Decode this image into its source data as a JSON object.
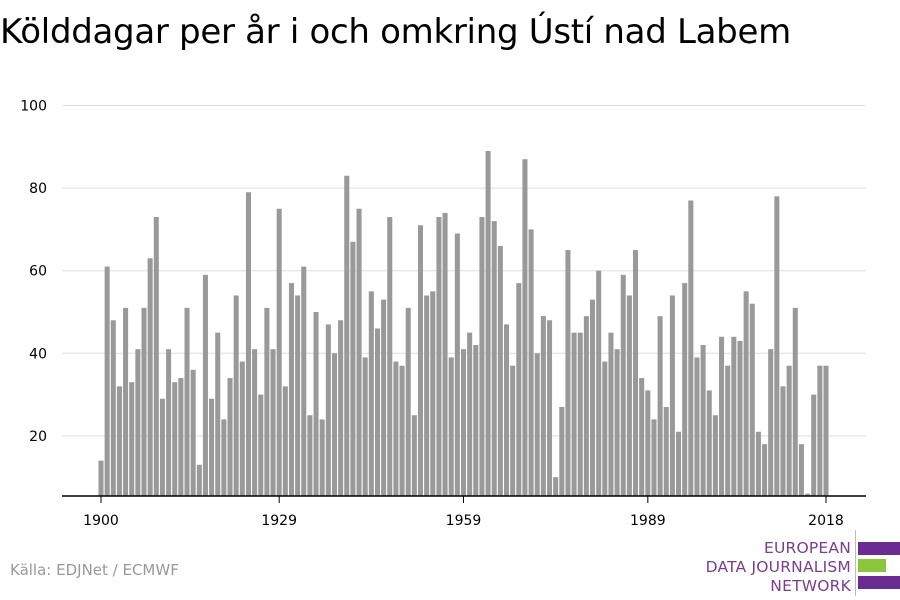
{
  "title": "Kölddagar per år i och omkring Ústí nad Labem",
  "source": "Källa: EDJNet / ECMWF",
  "logo": {
    "lines": [
      "EUROPEAN",
      "DATA JOURNALISM",
      "NETWORK"
    ],
    "colors": {
      "purple": "#6b2c91",
      "green": "#8cc63f"
    }
  },
  "chart_data": {
    "type": "bar",
    "x_start": 1900,
    "x_end": 2018,
    "x_ticks": [
      "1900",
      "1929",
      "1959",
      "1989",
      "2018"
    ],
    "y_ticks": [
      "20",
      "40",
      "60",
      "80",
      "100"
    ],
    "ylim": [
      5,
      100
    ],
    "grid": true,
    "bar_color": "#999999",
    "values": [
      14,
      61,
      48,
      32,
      51,
      33,
      41,
      51,
      63,
      73,
      29,
      41,
      33,
      34,
      51,
      36,
      13,
      59,
      29,
      45,
      24,
      34,
      54,
      38,
      79,
      41,
      30,
      51,
      41,
      75,
      32,
      57,
      54,
      61,
      25,
      50,
      24,
      47,
      40,
      48,
      83,
      67,
      75,
      39,
      55,
      46,
      53,
      73,
      38,
      37,
      51,
      25,
      71,
      54,
      55,
      73,
      74,
      39,
      69,
      41,
      45,
      42,
      73,
      89,
      72,
      66,
      47,
      37,
      57,
      87,
      70,
      40,
      49,
      48,
      10,
      27,
      65,
      45,
      45,
      49,
      53,
      60,
      38,
      45,
      41,
      59,
      54,
      65,
      34,
      31,
      24,
      49,
      27,
      54,
      21,
      57,
      77,
      39,
      42,
      31,
      25,
      44,
      37,
      44,
      43,
      55,
      52,
      21,
      18,
      41,
      78,
      32,
      37,
      51,
      18,
      6,
      30,
      37,
      37
    ]
  }
}
